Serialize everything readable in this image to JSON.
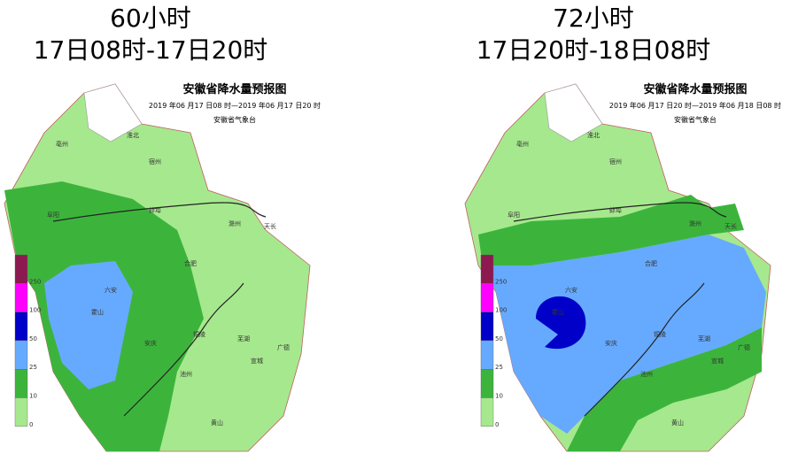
{
  "panels": [
    {
      "hours": "60小时",
      "period": "17日08时-17日20时",
      "map_title": "安徽省降水量预报图",
      "date": "2019 年06 月17 日08 时—2019 年06 月17 日20 时",
      "agency": "安徽省气象台",
      "places": [
        "亳州",
        "淮北",
        "宿州",
        "阜阳",
        "蚌埠",
        "滁州",
        "天长",
        "六安",
        "霍山",
        "合肥",
        "安庆",
        "铜陵",
        "芜湖",
        "宣城",
        "池州",
        "黄山",
        "广德"
      ]
    },
    {
      "hours": "72小时",
      "period": "17日20时-18日08时",
      "map_title": "安徽省降水量预报图",
      "date": "2019 年06 月17 日20 时—2019 年06 月18 日08 时",
      "agency": "安徽省气象台",
      "places": [
        "亳州",
        "淮北",
        "宿州",
        "阜阳",
        "蚌埠",
        "滁州",
        "天长",
        "六安",
        "霍山",
        "合肥",
        "安庆",
        "铜陵",
        "芜湖",
        "宣城",
        "池州",
        "黄山",
        "广德"
      ]
    }
  ],
  "legend": {
    "ticks": [
      250,
      100,
      50,
      25,
      10,
      0
    ],
    "colors": [
      "#8c1a50",
      "#ff00ff",
      "#0000c8",
      "#66aaff",
      "#3cb43c",
      "#a6e88e"
    ]
  }
}
